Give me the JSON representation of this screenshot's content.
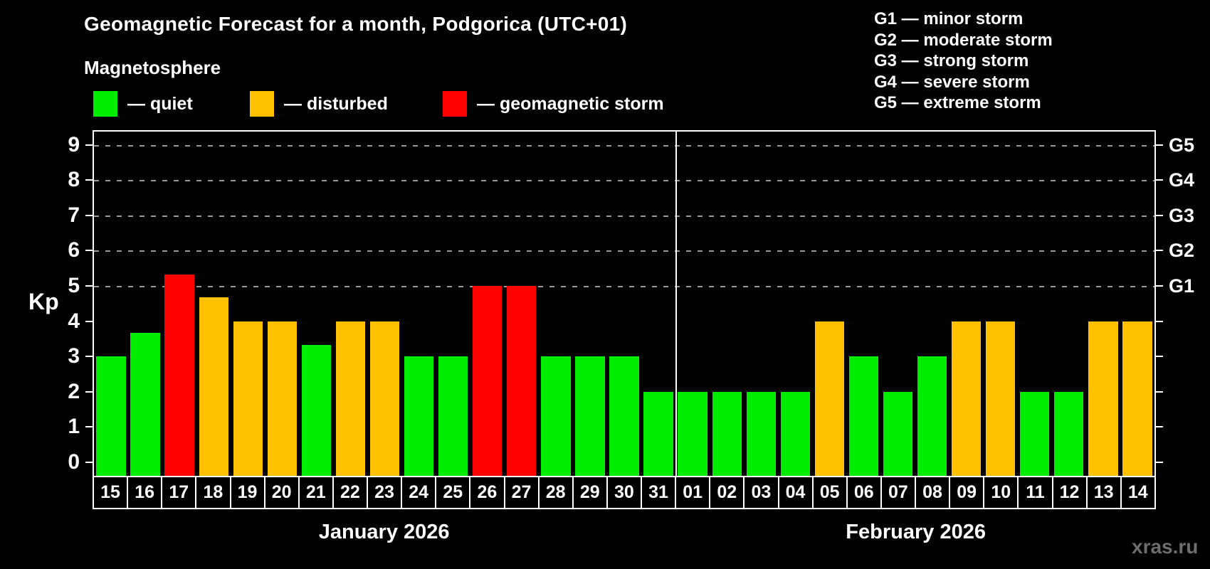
{
  "header": {
    "title": "Geomagnetic Forecast for a month, Podgorica (UTC+01)",
    "subtitle": "Magnetosphere"
  },
  "legend": {
    "items": [
      {
        "name": "quiet",
        "label": "— quiet",
        "color": "#00ed00"
      },
      {
        "name": "disturbed",
        "label": "— disturbed",
        "color": "#ffc000"
      },
      {
        "name": "storm",
        "label": "— geomagnetic storm",
        "color": "#ff0000"
      }
    ]
  },
  "storm_scale_legend": {
    "lines": [
      "G1 — minor storm",
      "G2 — moderate storm",
      "G3 — strong storm",
      "G4 — severe storm",
      "G5 — extreme storm"
    ]
  },
  "watermark": "xras.ru",
  "chart_data": {
    "type": "bar",
    "title": "Geomagnetic Forecast for a month, Podgorica (UTC+01)",
    "subtitle": "Magnetosphere",
    "ylabel": "Kp",
    "ylim": [
      0,
      9
    ],
    "yticks": [
      0,
      1,
      2,
      3,
      4,
      5,
      6,
      7,
      8,
      9
    ],
    "grid": "dashed horizontal lines at Kp 5–9 only",
    "grid_levels": [
      5,
      6,
      7,
      8,
      9
    ],
    "right_axis": [
      {
        "value": 5,
        "label": "G1"
      },
      {
        "value": 6,
        "label": "G2"
      },
      {
        "value": 7,
        "label": "G3"
      },
      {
        "value": 8,
        "label": "G4"
      },
      {
        "value": 9,
        "label": "G5"
      }
    ],
    "months": [
      {
        "label": "January 2026",
        "days": 17
      },
      {
        "label": "February 2026",
        "days": 14
      }
    ],
    "categories": [
      "15",
      "16",
      "17",
      "18",
      "19",
      "20",
      "21",
      "22",
      "23",
      "24",
      "25",
      "26",
      "27",
      "28",
      "29",
      "30",
      "31",
      "01",
      "02",
      "03",
      "04",
      "05",
      "06",
      "07",
      "08",
      "09",
      "10",
      "11",
      "12",
      "13",
      "14"
    ],
    "values": [
      3,
      3.67,
      5.33,
      4.67,
      4,
      4,
      3.33,
      4,
      4,
      3,
      3,
      5,
      5,
      3,
      3,
      3,
      2,
      2,
      2,
      2,
      2,
      4,
      3,
      2,
      3,
      4,
      4,
      2,
      2,
      4,
      4
    ],
    "status": [
      "quiet",
      "quiet",
      "storm",
      "disturbed",
      "disturbed",
      "disturbed",
      "quiet",
      "disturbed",
      "disturbed",
      "quiet",
      "quiet",
      "storm",
      "storm",
      "quiet",
      "quiet",
      "quiet",
      "quiet",
      "quiet",
      "quiet",
      "quiet",
      "quiet",
      "disturbed",
      "quiet",
      "quiet",
      "quiet",
      "disturbed",
      "disturbed",
      "quiet",
      "quiet",
      "disturbed",
      "disturbed"
    ],
    "colors": {
      "quiet": "#00ed00",
      "disturbed": "#ffc000",
      "storm": "#ff0000"
    },
    "legend_position": "top-left",
    "month_separator_after_index": 16
  }
}
